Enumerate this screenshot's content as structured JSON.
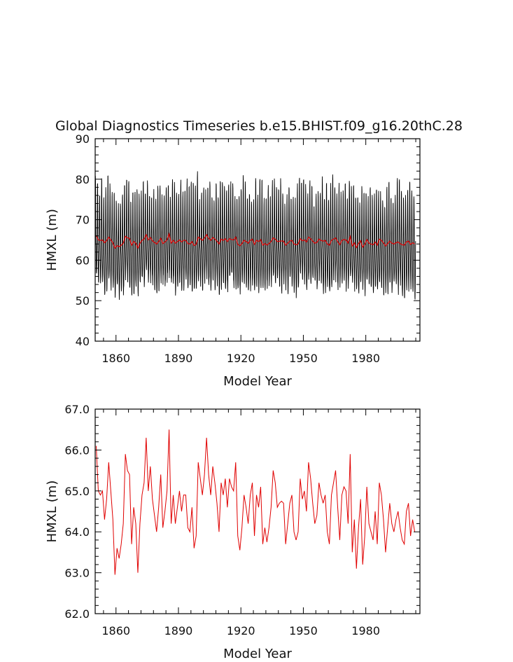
{
  "figure_title": "Global Diagnostics Timeseries b.e15.BHIST.f09_g16.20thC.28",
  "colors": {
    "axis": "#000000",
    "monthly": "#000000",
    "annual": "#e00000"
  },
  "chart_data": [
    {
      "type": "line",
      "title": "Global Diagnostics Timeseries b.e15.BHIST.f09_g16.20thC.28",
      "xlabel": "Model Year",
      "ylabel": "HMXL (m)",
      "xlim": [
        1850,
        2006
      ],
      "ylim": [
        40,
        90
      ],
      "xticks": [
        1860,
        1890,
        1920,
        1950,
        1980
      ],
      "xtick_labels": [
        "1860",
        "1890",
        "1920",
        "1950",
        "1980"
      ],
      "yticks": [
        40,
        50,
        60,
        70,
        80,
        90
      ],
      "ytick_labels": [
        "40",
        "50",
        "60",
        "70",
        "80",
        "90"
      ],
      "grid": false,
      "legend": "none",
      "series": [
        {
          "frequency": "monthly",
          "color": "#000000",
          "annual_cycle_min": 51,
          "annual_cycle_max": 81
        },
        {
          "frequency": "annual",
          "color": "#e00000",
          "values_from": "panel-2"
        }
      ]
    },
    {
      "type": "line",
      "xlabel": "Model Year",
      "ylabel": "HMXL (m)",
      "xlim": [
        1850,
        2006
      ],
      "ylim": [
        62.0,
        67.0
      ],
      "xticks": [
        1860,
        1890,
        1920,
        1950,
        1980
      ],
      "xtick_labels": [
        "1860",
        "1890",
        "1920",
        "1950",
        "1980"
      ],
      "yticks": [
        62,
        63,
        64,
        65,
        66,
        67
      ],
      "ytick_labels": [
        "62.0",
        "63.0",
        "64.0",
        "65.0",
        "66.0",
        "67.0"
      ],
      "grid": false,
      "legend": "none",
      "series": [
        {
          "color": "#e00000",
          "x_start": 1850,
          "x_step": 1,
          "values": [
            66.1,
            65.0,
            64.9,
            65.0,
            64.3,
            64.8,
            65.7,
            65.0,
            64.3,
            62.95,
            63.6,
            63.35,
            63.7,
            64.2,
            65.9,
            65.5,
            65.4,
            63.7,
            64.6,
            64.2,
            63.0,
            64.2,
            64.9,
            65.2,
            66.3,
            65.0,
            65.6,
            64.8,
            64.4,
            64.0,
            64.6,
            65.4,
            64.1,
            64.5,
            65.0,
            66.5,
            64.2,
            64.9,
            64.2,
            64.6,
            65.0,
            64.5,
            64.9,
            64.9,
            64.1,
            64.0,
            64.6,
            63.6,
            63.9,
            65.7,
            65.3,
            64.9,
            65.4,
            66.3,
            65.4,
            64.9,
            65.6,
            65.2,
            64.7,
            64.0,
            65.2,
            64.9,
            65.3,
            64.6,
            65.3,
            65.1,
            65.0,
            65.7,
            63.9,
            63.55,
            64.1,
            64.9,
            64.6,
            64.2,
            64.9,
            65.2,
            63.9,
            64.9,
            64.6,
            65.1,
            63.7,
            64.1,
            63.75,
            64.1,
            64.6,
            65.5,
            65.2,
            64.6,
            64.7,
            64.75,
            64.7,
            63.7,
            64.2,
            64.7,
            64.9,
            64.0,
            63.8,
            64.0,
            65.3,
            64.8,
            65.0,
            64.5,
            65.7,
            65.3,
            64.7,
            64.2,
            64.4,
            65.2,
            64.9,
            64.7,
            64.9,
            64.0,
            63.7,
            64.9,
            65.2,
            65.5,
            64.6,
            63.8,
            64.9,
            65.1,
            65.0,
            64.2,
            65.9,
            63.5,
            64.3,
            63.1,
            64.1,
            64.8,
            63.2,
            63.9,
            65.1,
            64.2,
            64.0,
            63.8,
            64.5,
            63.7,
            65.2,
            64.9,
            64.3,
            63.5,
            64.1,
            64.7,
            64.2,
            64.0,
            64.3,
            64.5,
            64.1,
            63.8,
            63.7,
            64.5,
            64.7,
            63.9,
            64.3,
            64.0
          ]
        }
      ]
    }
  ]
}
